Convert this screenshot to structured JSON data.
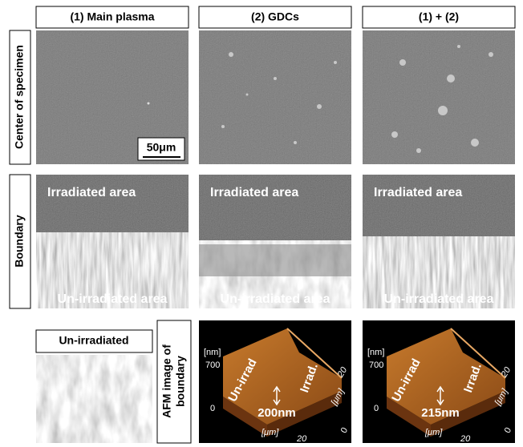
{
  "columns": [
    "(1) Main plasma",
    "(2) GDCs",
    "(1) + (2)"
  ],
  "rows": [
    "Center of specimen",
    "Boundary"
  ],
  "scale_bar": "50μm",
  "boundary_labels": [
    {
      "top": "Irradiated area",
      "bottom": "Un-irradiated area"
    },
    {
      "top": "Irradiated area",
      "bottom": "Un-irradiated area"
    },
    {
      "top": "Irradiated area",
      "bottom": "Un-irradiated area"
    }
  ],
  "unirradiated": "Un-irradiated",
  "afm": {
    "label": [
      "AFM image of",
      "boundary"
    ],
    "panels": [
      {
        "z_unit": "[nm]",
        "z_max": "700",
        "z_min": "0",
        "left_label": "Un-irrad",
        "right_label": "Irrad.",
        "step": "200nm",
        "x_unit": "[μm]",
        "x_max": "20",
        "y_unit": "[μm]",
        "y_max": "20",
        "y_min": "0"
      },
      {
        "z_unit": "[nm]",
        "z_max": "700",
        "z_min": "0",
        "left_label": "Un-irrad",
        "right_label": "Irrad.",
        "step": "215nm",
        "x_unit": "[μm]",
        "x_max": "20",
        "y_unit": "[μm]",
        "y_max": "20",
        "y_min": "0"
      }
    ]
  }
}
